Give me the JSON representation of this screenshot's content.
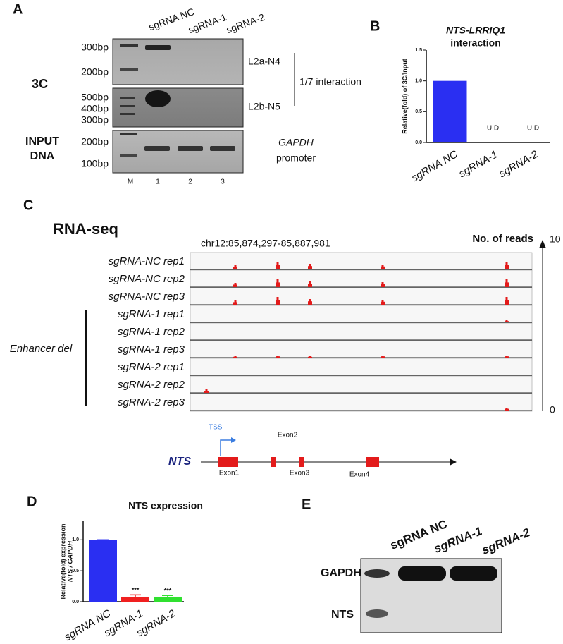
{
  "panel_a": {
    "letter": "A",
    "lanes": [
      "sgRNA NC",
      "sgRNA-1",
      "sgRNA-2"
    ],
    "gel1_markers": [
      "300bp",
      "200bp"
    ],
    "gel1_label": "L2a-N4",
    "gel2_markers": [
      "500bp",
      "400bp",
      "300bp"
    ],
    "gel2_label": "L2b-N5",
    "bracket_label": "1/7 interaction",
    "row_3c": "3C",
    "row_input": [
      "INPUT",
      "DNA"
    ],
    "gel3_markers": [
      "200bp",
      "100bp"
    ],
    "gel3_label": [
      "GAPDH",
      "promoter"
    ],
    "lane_numbers": [
      "M",
      "1",
      "2",
      "3"
    ]
  },
  "chart_data": [
    {
      "panel": "B",
      "type": "bar",
      "title": "NTS-LRRIQ1",
      "subtitle": "interaction",
      "y_label": [
        "Relative(fold) of 3C/Input"
      ],
      "categories": [
        "sgRNA NC",
        "sgRNA-1",
        "sgRNA-2"
      ],
      "values": [
        1,
        null,
        null
      ],
      "value_labels": [
        null,
        "U.D",
        "U.D"
      ],
      "colors": [
        "#2a2ff2",
        "#2a2ff2",
        "#2a2ff2"
      ],
      "ylim": [
        0,
        1.5
      ],
      "yticks": [
        {
          "value": 0,
          "label": "0.0"
        },
        {
          "value": 0.5,
          "label": "0.5"
        },
        {
          "value": 1,
          "label": "1.0"
        },
        {
          "value": 1.5,
          "label": "1.5"
        }
      ]
    },
    {
      "panel": "D",
      "type": "bar",
      "title": "NTS expression",
      "y_label": [
        "Relative(fold) expression",
        "NTS / GAPDH"
      ],
      "categories": [
        "sgRNA NC",
        "sgRNA-1",
        "sgRNA-2"
      ],
      "values": [
        1,
        0.08,
        0.08
      ],
      "errors": [
        0,
        0.03,
        0.02
      ],
      "annotations": [
        null,
        "***",
        "***"
      ],
      "colors": [
        "#2a2ff2",
        "#f02020",
        "#30e030"
      ],
      "ylim": [
        0,
        1.3
      ],
      "yticks": [
        {
          "value": 0,
          "label": "0.0"
        },
        {
          "value": 0.5,
          "label": "0.5"
        },
        {
          "value": 1,
          "label": "1.0"
        }
      ]
    }
  ],
  "panel_c": {
    "letter": "C",
    "title": "RNA-seq",
    "locus": "chr12:85,874,297-85,887,981",
    "scale_label": "No. of reads",
    "scale_max": "10",
    "scale_min": "0",
    "tracks": [
      "sgRNA-NC rep1",
      "sgRNA-NC rep2",
      "sgRNA-NC rep3",
      "sgRNA-1 rep1",
      "sgRNA-1 rep2",
      "sgRNA-1 rep3",
      "sgRNA-2 rep1",
      "sgRNA-2 rep2",
      "sgRNA-2 rep3"
    ],
    "group_label": "Enhancer del",
    "gene": "NTS",
    "tss": "TSS",
    "exons": [
      "Exon1",
      "Exon2",
      "Exon3",
      "Exon4"
    ]
  },
  "panel_e": {
    "letter": "E",
    "lanes": [
      "sgRNA NC",
      "sgRNA-1",
      "sgRNA-2"
    ],
    "bands": [
      "GAPDH",
      "NTS"
    ]
  }
}
